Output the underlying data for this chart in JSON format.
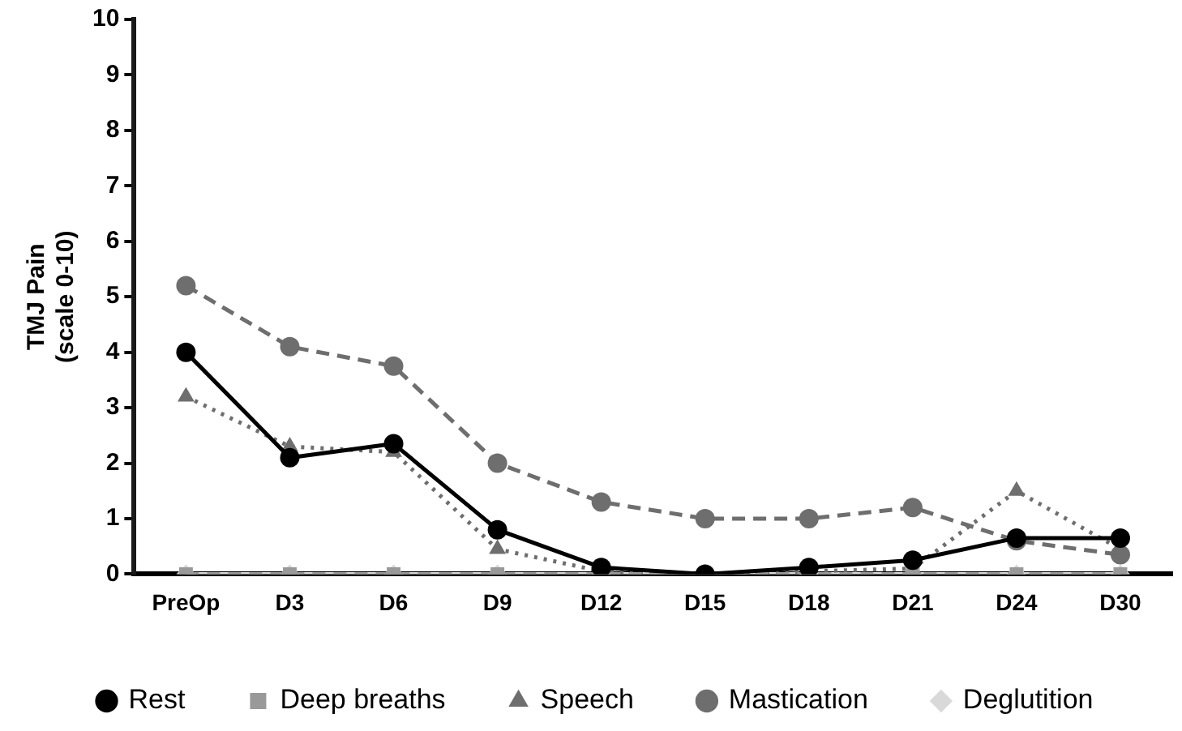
{
  "chart_data": {
    "type": "line",
    "ylabel": "TMJ Pain\n(scale 0-10)",
    "categories": [
      "PreOp",
      "D3",
      "D6",
      "D9",
      "D12",
      "D15",
      "D18",
      "D21",
      "D24",
      "D30"
    ],
    "series": [
      {
        "name": "Rest",
        "color": "#000000",
        "marker": "circle",
        "line_style": "solid",
        "values": [
          4.0,
          2.1,
          2.35,
          0.8,
          0.12,
          0.0,
          0.12,
          0.25,
          0.65,
          0.65
        ]
      },
      {
        "name": "Deep breaths",
        "color": "#999999",
        "marker": "square",
        "line_style": "dashed",
        "values": [
          0,
          0,
          0,
          0,
          0,
          0,
          0,
          0,
          0,
          0
        ]
      },
      {
        "name": "Speech",
        "color": "#6e6e6e",
        "marker": "triangle",
        "line_style": "dotted",
        "values": [
          3.2,
          2.3,
          2.2,
          0.45,
          0.05,
          0.0,
          0.05,
          0.1,
          1.5,
          0.45
        ]
      },
      {
        "name": "Mastication",
        "color": "#6e6e6e",
        "marker": "circle",
        "line_style": "dashed",
        "values": [
          5.2,
          4.1,
          3.75,
          2.0,
          1.3,
          1.0,
          1.0,
          1.2,
          0.6,
          0.35
        ]
      },
      {
        "name": "Deglutition",
        "color": "#d9d9d9",
        "marker": "diamond",
        "line_style": "solid",
        "values": [
          0,
          0,
          0,
          0,
          0,
          0,
          0,
          0,
          0,
          0
        ]
      }
    ],
    "ylim": [
      0,
      10
    ],
    "yticks": [
      0,
      1,
      2,
      3,
      4,
      5,
      6,
      7,
      8,
      9,
      10
    ],
    "grid": false,
    "legend": "bottom"
  }
}
